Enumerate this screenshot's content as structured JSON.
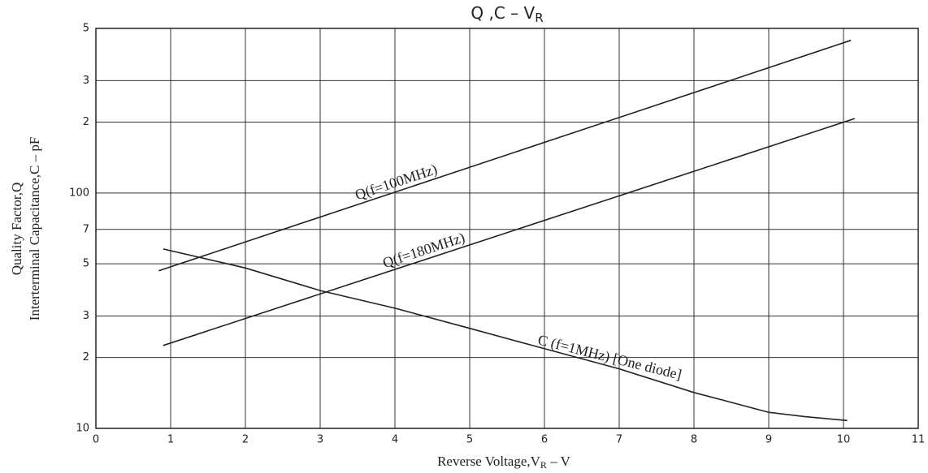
{
  "chart_data": {
    "type": "line",
    "title": {
      "text": "Q ,C  –  V",
      "sub": "R"
    },
    "xlabel": {
      "text": "Reverse Voltage,V",
      "sub": "R",
      "tail": " – V"
    },
    "ylabel": [
      "Quality Factor,Q",
      "Interterminal Capacitance,C – pF"
    ],
    "xlim": [
      0,
      11
    ],
    "xticks": [
      0,
      1,
      2,
      3,
      4,
      5,
      6,
      7,
      8,
      9,
      10,
      11
    ],
    "ylim": [
      10,
      500
    ],
    "yscale": "log",
    "yticks": [
      10,
      {
        "value": 20,
        "label": "2"
      },
      {
        "value": 30,
        "label": "3"
      },
      {
        "value": 50,
        "label": "5"
      },
      {
        "value": 70,
        "label": "7"
      },
      100,
      {
        "value": 200,
        "label": "2"
      },
      {
        "value": 300,
        "label": "3"
      },
      {
        "value": 500,
        "label": "5"
      }
    ],
    "grid": true,
    "series": [
      {
        "name": "Q(f=100MHz)",
        "color": "#222222",
        "x": [
          0.84,
          10.1
        ],
        "values": [
          46.7,
          445
        ]
      },
      {
        "name": "Q(f=180MHz)",
        "color": "#222222",
        "x": [
          0.9,
          10.15
        ],
        "values": [
          22.5,
          207
        ]
      },
      {
        "name": "C (f=1MHz) [One diode]",
        "color": "#222222",
        "x": [
          0.9,
          2,
          3,
          4,
          5,
          6,
          7,
          8,
          9,
          9.5,
          10.05
        ],
        "values": [
          57.8,
          48,
          38.5,
          32.4,
          26.6,
          21.8,
          17.9,
          14.2,
          11.7,
          11.2,
          10.8
        ]
      }
    ]
  }
}
